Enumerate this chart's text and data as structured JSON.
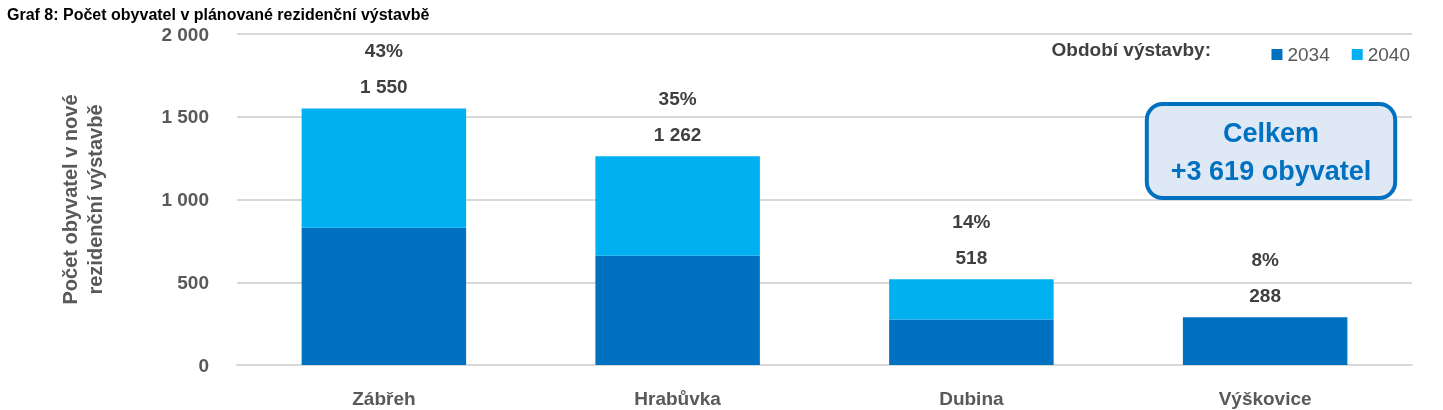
{
  "chart_data": {
    "type": "bar",
    "title": "Graf 8: Počet obyvatel v plánované rezidenční výstavbě",
    "ylabel": "Počet obyvatel v nové\nrezidenční výstavbě",
    "legend_title": "Období výstavby:",
    "categories": [
      "Zábřeh",
      "Hrabůvka",
      "Dubina",
      "Výškovice"
    ],
    "series": [
      {
        "name": "2034",
        "color": "#0070c0",
        "values": [
          830,
          660,
          275,
          288
        ]
      },
      {
        "name": "2040",
        "color": "#00b0f0",
        "values": [
          720,
          602,
          243,
          null
        ]
      }
    ],
    "stacked": true,
    "ylim": [
      0,
      2000
    ],
    "yticks": [
      0,
      500,
      {
        "value": 1000,
        "label": "1 000"
      },
      {
        "value": 1500,
        "label": "1 500"
      },
      {
        "value": 2000,
        "label": "2 000"
      }
    ],
    "grid": "y",
    "legend": "top right",
    "totals": [
      "1 550",
      "1 262",
      "518",
      "288"
    ],
    "annotations": [
      {
        "text": "43%",
        "x": "Zábřeh",
        "y": 1550
      },
      {
        "text": "35%",
        "x": "Hrabůvka",
        "y": 1262
      },
      {
        "text": "14%",
        "x": "Dubina",
        "y": 518
      },
      {
        "text": "8%",
        "x": "Výškovice",
        "y": 288
      },
      "Celkem\n+3 619 obyvatel"
    ]
  }
}
